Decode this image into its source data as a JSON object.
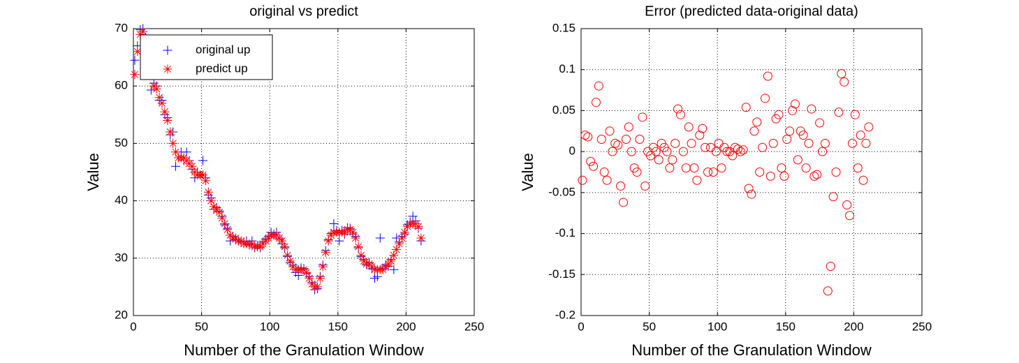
{
  "chart_data": [
    {
      "type": "scatter",
      "title": "original vs predict",
      "x_label": "Number of the Granulation Window",
      "y_label": "Value",
      "x": [
        1,
        3,
        5,
        7,
        9,
        11,
        13,
        15,
        17,
        19,
        21,
        23,
        25,
        27,
        29,
        31,
        33,
        35,
        37,
        39,
        41,
        43,
        45,
        47,
        49,
        51,
        53,
        55,
        57,
        59,
        61,
        63,
        65,
        67,
        69,
        71,
        73,
        75,
        77,
        79,
        81,
        83,
        85,
        87,
        89,
        91,
        93,
        95,
        97,
        99,
        101,
        103,
        105,
        107,
        109,
        111,
        113,
        115,
        117,
        119,
        121,
        123,
        125,
        127,
        129,
        131,
        133,
        135,
        137,
        139,
        141,
        143,
        145,
        147,
        149,
        151,
        153,
        155,
        157,
        159,
        161,
        163,
        165,
        167,
        169,
        171,
        173,
        175,
        177,
        179,
        181,
        183,
        185,
        187,
        189,
        191,
        193,
        195,
        197,
        199,
        201,
        203,
        205,
        207,
        209,
        211
      ],
      "series": [
        {
          "name": "original up",
          "color": "#0000ff",
          "marker": "+",
          "values": [
            64.5,
            67,
            69.8,
            70,
            68.5,
            64,
            59.3,
            60.5,
            60,
            57.5,
            57.5,
            55,
            54.5,
            51.5,
            52,
            46,
            47.5,
            48.5,
            47,
            48.5,
            47,
            45.5,
            44,
            45,
            44.5,
            47,
            44,
            41,
            40.5,
            38.5,
            38.8,
            38.2,
            37.3,
            35.8,
            35.2,
            33,
            33.8,
            33.2,
            33,
            32.8,
            32.8,
            33,
            32.3,
            33,
            31.8,
            32.2,
            31.8,
            32.8,
            33.3,
            33.8,
            34.5,
            34.2,
            34.5,
            33.3,
            32.5,
            31.8,
            30.3,
            29.2,
            28.8,
            27.5,
            27,
            28.3,
            28.2,
            27.3,
            26.8,
            25.8,
            24.5,
            24.7,
            26.8,
            28.8,
            31.3,
            33.2,
            34.3,
            36,
            34.8,
            33,
            34.8,
            34.2,
            35.3,
            35.2,
            34.2,
            33.8,
            31.8,
            30.3,
            29.8,
            28.8,
            29.2,
            28.2,
            26.5,
            26.8,
            33.5,
            28.2,
            28.8,
            28.6,
            29.8,
            28,
            33.5,
            32.8,
            33.8,
            34.2,
            35.8,
            36.3,
            37.3,
            36.5,
            35.2,
            33
          ]
        },
        {
          "name": "predict up",
          "color": "#ff0000",
          "marker": "*",
          "values": [
            62,
            66,
            69,
            69.5,
            68,
            65,
            62,
            60,
            59.5,
            58,
            57,
            55.5,
            54,
            52,
            50,
            48.5,
            47.5,
            47.5,
            47.5,
            47,
            46.5,
            46,
            45,
            44.5,
            44.5,
            44.5,
            43.5,
            41.5,
            40,
            39,
            38.5,
            38,
            37,
            36,
            35,
            34,
            33.5,
            33.5,
            33,
            33,
            32.5,
            32.5,
            32.5,
            32.5,
            32,
            32,
            32,
            32.5,
            33,
            33.5,
            34,
            34,
            34,
            33.5,
            33,
            32,
            30.5,
            29.5,
            28.5,
            28,
            28,
            28,
            28,
            27.5,
            26.5,
            25.5,
            25,
            25,
            26.5,
            28.5,
            31,
            33,
            34,
            34.5,
            34.5,
            34.5,
            34.5,
            34.5,
            35,
            35,
            34.5,
            33.5,
            32,
            30.5,
            29.5,
            29,
            29,
            28.5,
            28,
            28,
            28,
            28,
            28.5,
            29,
            29.5,
            30.5,
            31.5,
            32.5,
            33.5,
            34.5,
            35.5,
            36,
            36,
            36,
            35.5,
            33.5
          ]
        }
      ],
      "xlim": [
        0,
        250
      ],
      "xticks": [
        0,
        50,
        100,
        150,
        200,
        250
      ],
      "ylim": [
        20,
        70
      ],
      "yticks": [
        20,
        30,
        40,
        50,
        60,
        70
      ],
      "grid": true,
      "legend": "upper left"
    },
    {
      "type": "scatter",
      "title": "Error (predicted data-original data)",
      "x_label": "Number of the Granulation Window",
      "y_label": "Value",
      "x": [
        1,
        3,
        5,
        7,
        9,
        11,
        13,
        15,
        17,
        19,
        21,
        23,
        25,
        27,
        29,
        31,
        33,
        35,
        37,
        39,
        41,
        43,
        45,
        47,
        49,
        51,
        53,
        55,
        57,
        59,
        61,
        63,
        65,
        67,
        69,
        71,
        73,
        75,
        77,
        79,
        81,
        83,
        85,
        87,
        89,
        91,
        93,
        95,
        97,
        99,
        101,
        103,
        105,
        107,
        109,
        111,
        113,
        115,
        117,
        119,
        121,
        123,
        125,
        127,
        129,
        131,
        133,
        135,
        137,
        139,
        141,
        143,
        145,
        147,
        149,
        151,
        153,
        155,
        157,
        159,
        161,
        163,
        165,
        167,
        169,
        171,
        173,
        175,
        177,
        179,
        181,
        183,
        185,
        187,
        189,
        191,
        193,
        195,
        197,
        199,
        201,
        203,
        205,
        207,
        209,
        211
      ],
      "color": "#ff0000",
      "marker": "o",
      "values": [
        -0.035,
        0.02,
        0.018,
        -0.012,
        -0.018,
        0.06,
        0.08,
        0.015,
        -0.025,
        -0.035,
        0.025,
        0,
        0.01,
        0.008,
        -0.042,
        -0.062,
        0.015,
        0.03,
        0,
        -0.02,
        -0.025,
        0.015,
        0.042,
        -0.042,
        0,
        -0.005,
        0.005,
        0,
        -0.01,
        0.01,
        0.005,
        0,
        -0.02,
        -0.01,
        0.01,
        0.052,
        0.045,
        0,
        -0.02,
        0.03,
        0.01,
        -0.02,
        -0.035,
        0.02,
        0.028,
        0.005,
        -0.025,
        0.005,
        -0.025,
        0,
        0.01,
        -0.02,
        0.005,
        0,
        0,
        -0.005,
        0.005,
        0.003,
        0,
        0.002,
        0.054,
        -0.045,
        -0.052,
        0.025,
        0.036,
        -0.025,
        0.005,
        0.065,
        0.092,
        -0.03,
        0.01,
        0.04,
        0.045,
        -0.02,
        -0.03,
        0.015,
        0.025,
        0.05,
        0.058,
        -0.01,
        0.025,
        0.02,
        -0.02,
        0.01,
        0.052,
        -0.03,
        -0.028,
        0.035,
        0,
        0.01,
        -0.17,
        -0.14,
        -0.055,
        -0.025,
        0.048,
        0.095,
        0.085,
        -0.065,
        -0.078,
        0.01,
        0.045,
        -0.02,
        0.02,
        -0.035,
        0.01,
        0.03
      ],
      "xlim": [
        0,
        250
      ],
      "xticks": [
        0,
        50,
        100,
        150,
        200,
        250
      ],
      "ylim": [
        -0.2,
        0.15
      ],
      "yticks": [
        -0.2,
        -0.15,
        -0.1,
        -0.05,
        0,
        0.05,
        0.1,
        0.15
      ],
      "grid": true
    }
  ]
}
